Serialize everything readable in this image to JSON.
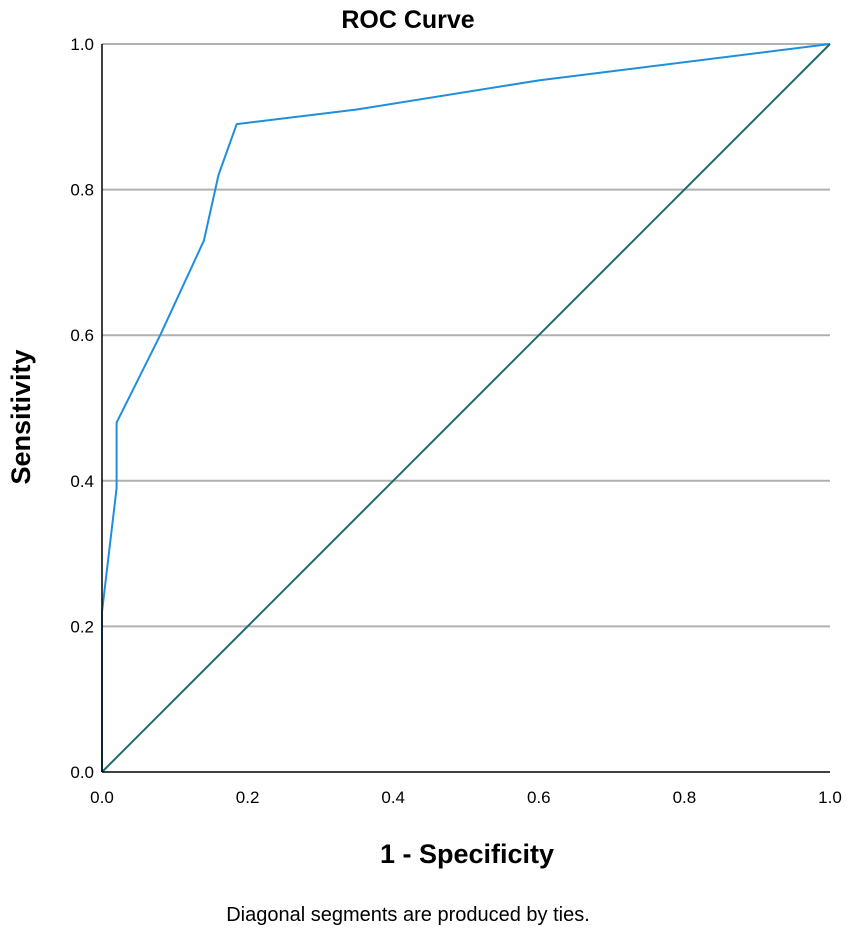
{
  "chart_data": {
    "type": "line",
    "title": "ROC Curve",
    "xlabel": "1 - Specificity",
    "ylabel": "Sensitivity",
    "footnote": "Diagonal segments are produced by ties.",
    "xlim": [
      0,
      1
    ],
    "ylim": [
      0,
      1
    ],
    "xticks": [
      "0.0",
      "0.2",
      "0.4",
      "0.6",
      "0.8",
      "1.0"
    ],
    "yticks": [
      "0.0",
      "0.2",
      "0.4",
      "0.6",
      "0.8",
      "1.0"
    ],
    "grid": "horizontal",
    "series": [
      {
        "color": "#1f8fdc",
        "x": [
          0.0,
          0.0,
          0.0,
          0.02,
          0.02,
          0.08,
          0.14,
          0.16,
          0.185,
          0.35,
          0.6,
          1.0
        ],
        "y": [
          0.0,
          0.15,
          0.22,
          0.39,
          0.48,
          0.6,
          0.73,
          0.82,
          0.89,
          0.91,
          0.95,
          1.0
        ]
      },
      {
        "color": "#1a6b6b",
        "x": [
          0.0,
          1.0
        ],
        "y": [
          0.0,
          1.0
        ]
      }
    ]
  }
}
